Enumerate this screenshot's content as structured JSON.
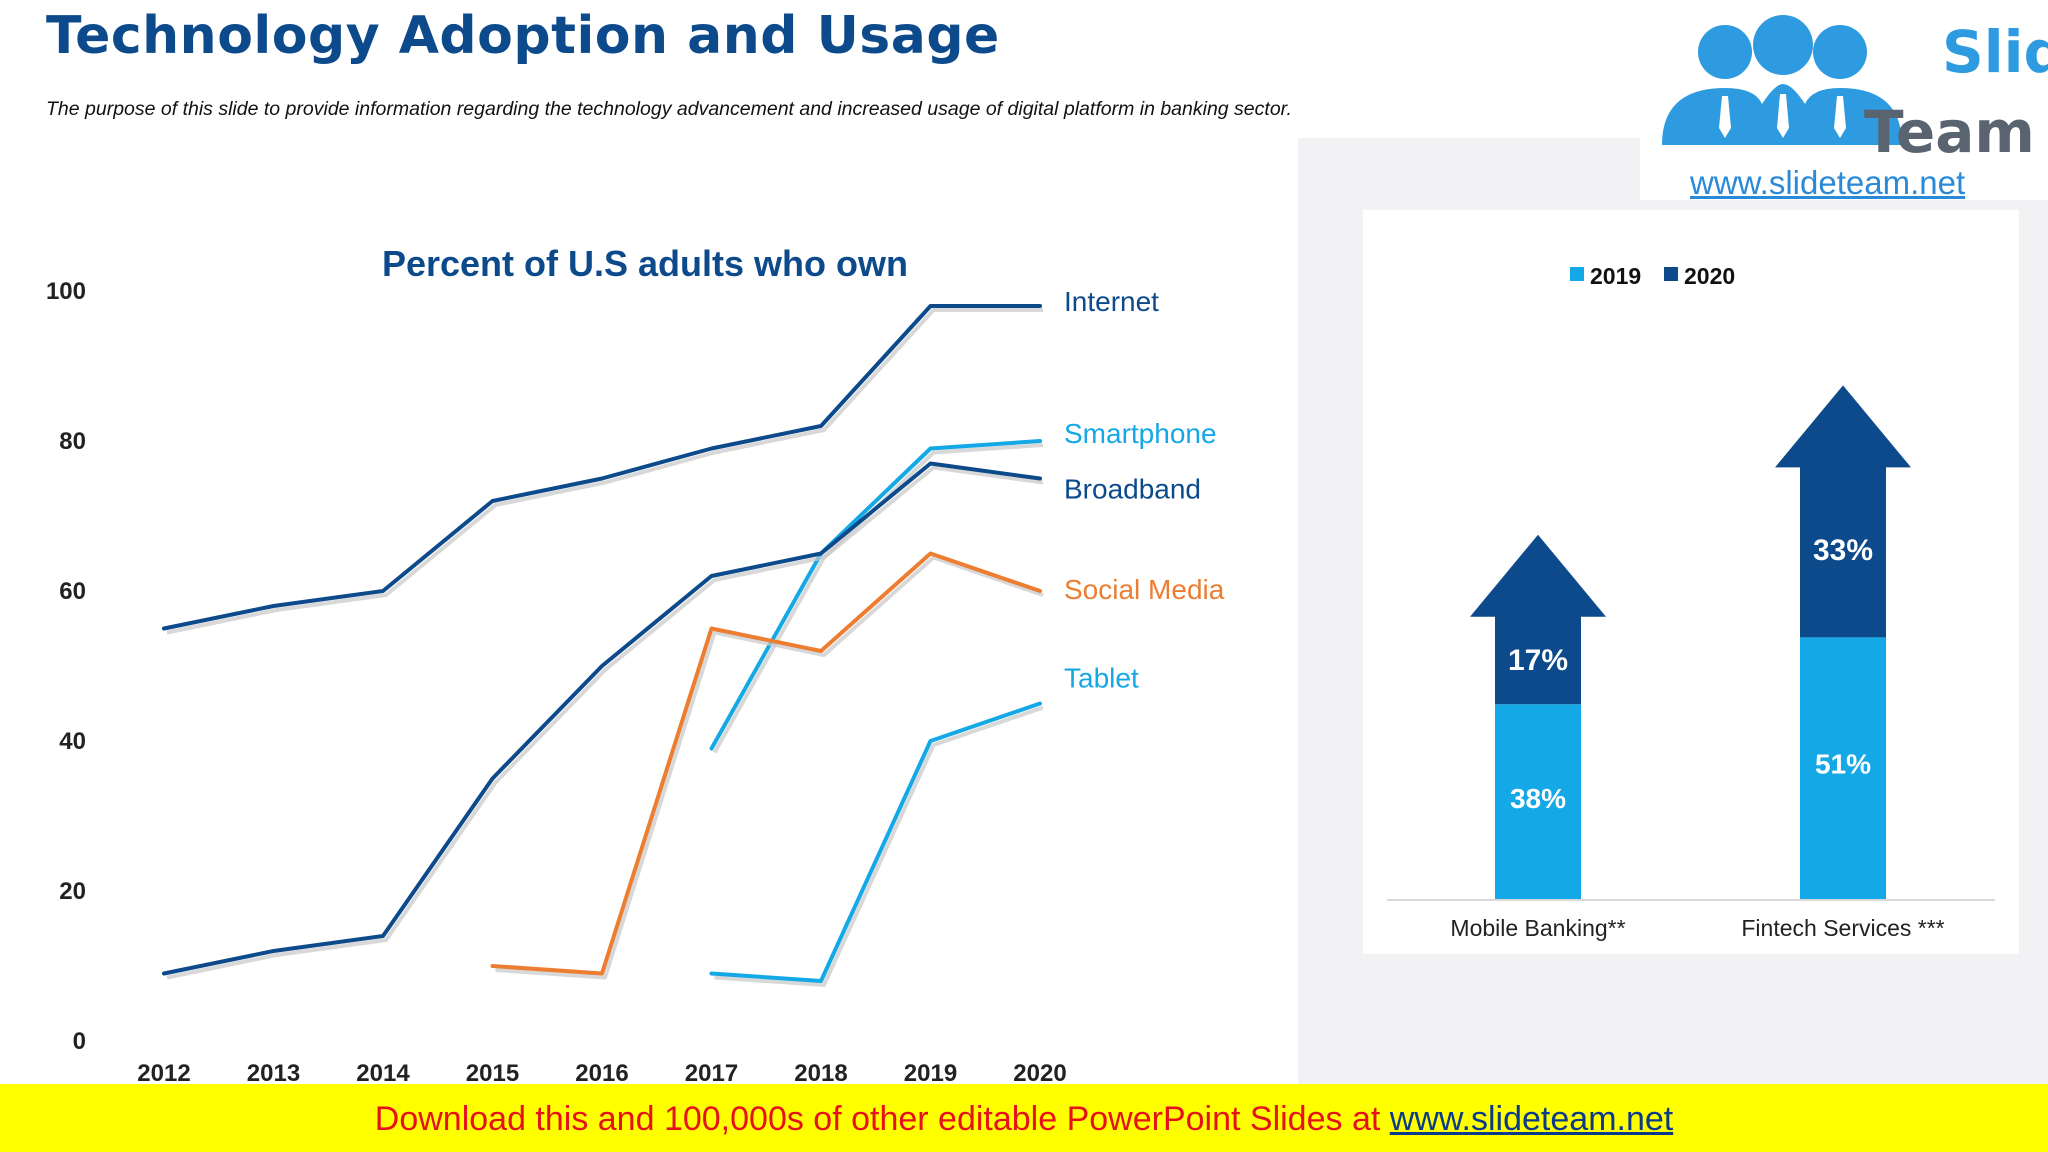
{
  "slide": {
    "title": "Technology Adoption and Usage",
    "subtitle": "The purpose of this slide to provide information regarding the technology advancement and increased usage of digital platform in banking sector."
  },
  "logo": {
    "line1": "Slide",
    "line2": "Team",
    "url": "www.slideteam.net"
  },
  "footer": {
    "text": "Download this and 100,000s of other editable PowerPoint Slides at",
    "link": "www.slideteam.net"
  },
  "colors": {
    "navy": "#0c4a8c",
    "sky": "#14a8e6",
    "orange": "#ed7d31",
    "text": "#0c4a8c"
  },
  "chart_data": [
    {
      "type": "line",
      "title": "Percent of U.S adults who own",
      "x": [
        "2012",
        "2013",
        "2014",
        "2015",
        "2016",
        "2017",
        "2018",
        "2019",
        "2020"
      ],
      "ylim": [
        0,
        100
      ],
      "yticks": [
        "0",
        "20",
        "40",
        "60",
        "80",
        "100"
      ],
      "grid": false,
      "series": [
        {
          "name": "Internet",
          "color": "#0c4a8c",
          "values": [
            55,
            58,
            60,
            72,
            75,
            79,
            82,
            98,
            98
          ]
        },
        {
          "name": "Smartphone",
          "color": "#14a8e6",
          "values": [
            null,
            null,
            null,
            null,
            null,
            39,
            65,
            79,
            80
          ]
        },
        {
          "name": "Broadband",
          "color": "#0c4a8c",
          "values": [
            9,
            12,
            14,
            35,
            50,
            62,
            65,
            77,
            75
          ]
        },
        {
          "name": "Social Media",
          "color": "#ed7d31",
          "values": [
            null,
            null,
            null,
            10,
            9,
            55,
            52,
            65,
            60
          ]
        },
        {
          "name": "Tablet",
          "color": "#14a8e6",
          "values": [
            null,
            null,
            null,
            null,
            null,
            9,
            8,
            40,
            45
          ]
        }
      ]
    },
    {
      "type": "bar",
      "stacked": true,
      "categories": [
        "Mobile Banking**",
        "Fintech Services ***"
      ],
      "legend_position": "top",
      "series": [
        {
          "name": "2019",
          "color": "#14a8e6",
          "values": [
            38,
            51
          ],
          "labels": [
            "38%",
            "51%"
          ]
        },
        {
          "name": "2020",
          "color": "#0c4a8c",
          "values": [
            17,
            33
          ],
          "labels": [
            "17%",
            "33%"
          ]
        }
      ]
    }
  ]
}
